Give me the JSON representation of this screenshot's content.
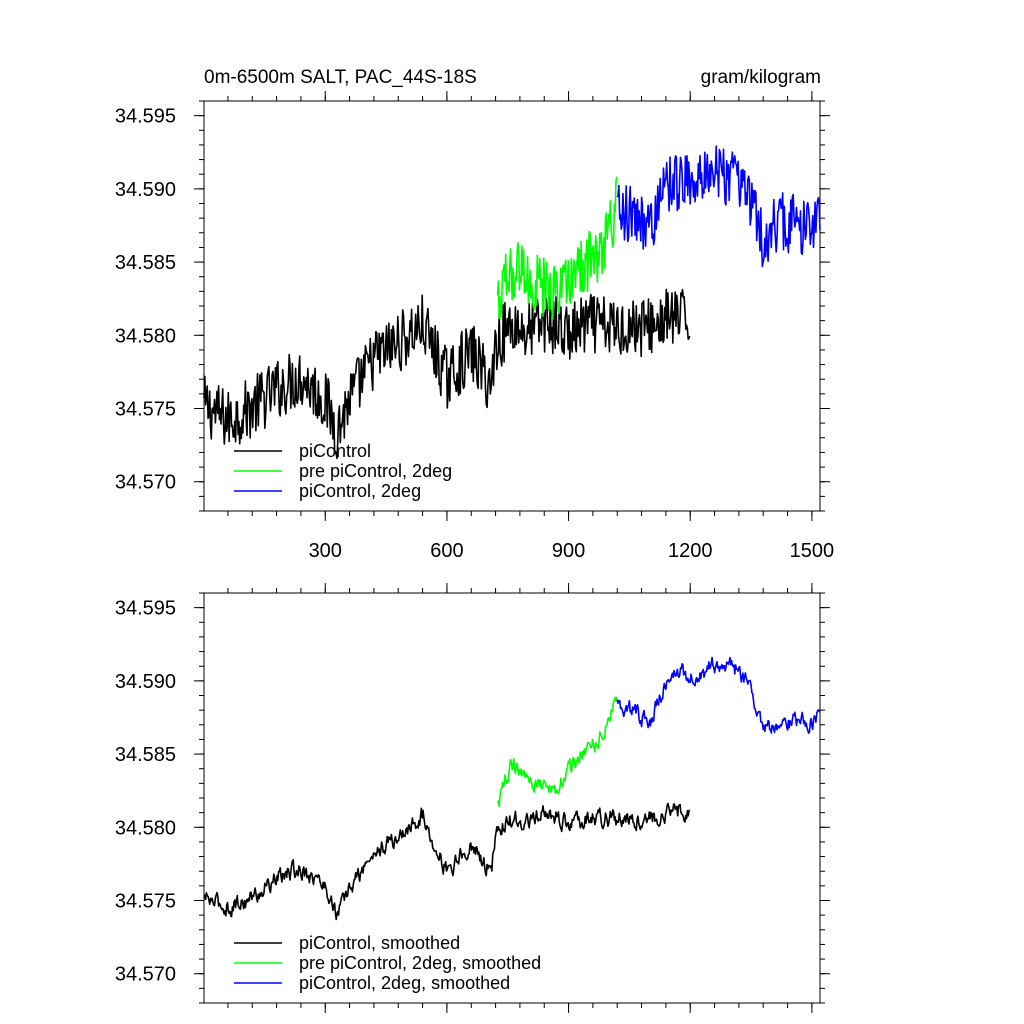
{
  "title_left": "0m-6500m SALT, PAC_44S-18S",
  "title_right": "gram/kilogram",
  "colors": {
    "black": "#000000",
    "green": "#00ff00",
    "blue": "#0000ff"
  },
  "chart_data": [
    {
      "type": "line",
      "xlim": [
        1,
        1520
      ],
      "ylim": [
        34.568,
        34.596
      ],
      "xticks": [
        300,
        600,
        900,
        1200,
        1500
      ],
      "xtick_labels": [
        "300",
        "600",
        "900",
        "1200",
        "1500"
      ],
      "yticks": [
        34.57,
        34.575,
        34.58,
        34.585,
        34.59,
        34.595
      ],
      "ytick_labels": [
        "34.570",
        "34.575",
        "34.580",
        "34.585",
        "34.590",
        "34.595"
      ],
      "legend_position": "bottom-left",
      "series": [
        {
          "name": "piControl",
          "color": "#000000",
          "x": [
            1,
            60,
            120,
            180,
            240,
            300,
            330,
            360,
            420,
            480,
            540,
            600,
            660,
            710,
            720,
            760,
            800,
            850,
            900,
            950,
            1000,
            1050,
            1100,
            1150,
            1200
          ],
          "y": [
            34.5752,
            34.5742,
            34.5751,
            34.5763,
            34.5772,
            34.5755,
            34.5735,
            34.5756,
            34.5784,
            34.5795,
            34.5807,
            34.577,
            34.5789,
            34.5765,
            34.5795,
            34.5808,
            34.5802,
            34.581,
            34.58,
            34.5808,
            34.5805,
            34.5806,
            34.5806,
            34.5812,
            34.581
          ]
        },
        {
          "name": "pre piControl, 2deg",
          "color": "#00ff00",
          "x": [
            725,
            750,
            780,
            810,
            850,
            880,
            910,
            940,
            970,
            1000,
            1020
          ],
          "y": [
            34.582,
            34.584,
            34.5845,
            34.5835,
            34.5832,
            34.583,
            34.5845,
            34.5848,
            34.5855,
            34.5872,
            34.589
          ]
        },
        {
          "name": "piControl, 2deg",
          "color": "#0000ff",
          "x": [
            1020,
            1060,
            1100,
            1140,
            1180,
            1220,
            1260,
            1300,
            1340,
            1380,
            1420,
            1460,
            1500,
            1520
          ],
          "y": [
            34.5885,
            34.588,
            34.5875,
            34.59,
            34.5905,
            34.5905,
            34.5908,
            34.591,
            34.59,
            34.5865,
            34.5878,
            34.5875,
            34.5878,
            34.5882
          ]
        }
      ]
    },
    {
      "type": "line",
      "xlim": [
        1,
        1520
      ],
      "ylim": [
        34.568,
        34.596
      ],
      "xticks": [
        300,
        600,
        900,
        1200,
        1500
      ],
      "xtick_labels": [],
      "yticks": [
        34.57,
        34.575,
        34.58,
        34.585,
        34.59,
        34.595
      ],
      "ytick_labels": [
        "34.570",
        "34.575",
        "34.580",
        "34.585",
        "34.590",
        "34.595"
      ],
      "legend_position": "bottom-left",
      "series": [
        {
          "name": "piControl, smoothed",
          "color": "#000000",
          "x": [
            1,
            60,
            120,
            180,
            240,
            300,
            330,
            360,
            420,
            480,
            540,
            600,
            660,
            710,
            720,
            760,
            800,
            850,
            900,
            950,
            1000,
            1050,
            1100,
            1150,
            1200
          ],
          "y": [
            34.5752,
            34.5745,
            34.5752,
            34.5765,
            34.5772,
            34.576,
            34.574,
            34.5758,
            34.5782,
            34.5793,
            34.5808,
            34.577,
            34.5788,
            34.577,
            34.5795,
            34.5806,
            34.5803,
            34.581,
            34.5802,
            34.5807,
            34.5806,
            34.5806,
            34.5806,
            34.581,
            34.5812
          ]
        },
        {
          "name": "pre piControl, 2deg, smoothed",
          "color": "#00ff00",
          "x": [
            725,
            750,
            780,
            810,
            850,
            880,
            910,
            940,
            970,
            1000,
            1020
          ],
          "y": [
            34.5815,
            34.5838,
            34.5843,
            34.583,
            34.5825,
            34.583,
            34.5845,
            34.585,
            34.5858,
            34.5875,
            34.589
          ]
        },
        {
          "name": "piControl, 2deg, smoothed",
          "color": "#0000ff",
          "x": [
            1020,
            1060,
            1100,
            1140,
            1180,
            1220,
            1260,
            1300,
            1340,
            1380,
            1420,
            1460,
            1500,
            1520
          ],
          "y": [
            34.5885,
            34.5878,
            34.5872,
            34.5898,
            34.5905,
            34.5905,
            34.591,
            34.5912,
            34.59,
            34.587,
            34.5868,
            34.5875,
            34.587,
            34.588
          ]
        }
      ]
    }
  ]
}
